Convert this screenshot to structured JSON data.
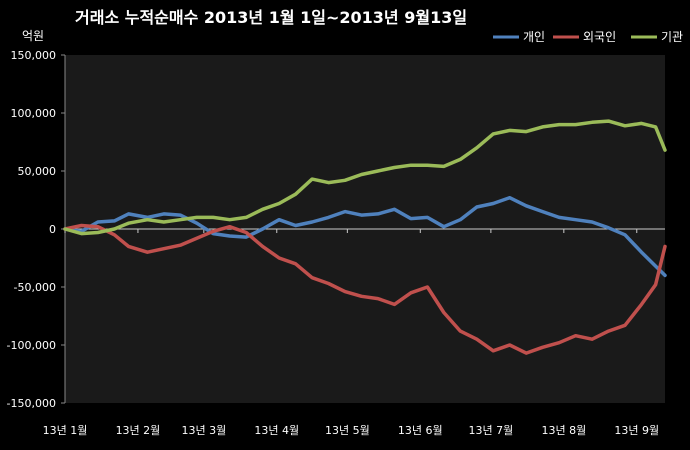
{
  "chart_data": {
    "type": "line",
    "title": "거래소 누적순매수 2013년 1월 1일~2013년 9월13일",
    "unit_label": "억원",
    "ylim": [
      -150000,
      150000
    ],
    "y_ticks": [
      150000,
      100000,
      50000,
      0,
      -50000,
      -100000,
      -150000
    ],
    "y_tick_labels": [
      "150,000",
      "100,000",
      "50,000",
      "0",
      "-50,000",
      "-100,000",
      "-150,000"
    ],
    "x_range": [
      "2013-01-01",
      "2013-09-13"
    ],
    "x_ticks": [
      {
        "date": "2013-01-01",
        "label": "13년 1월"
      },
      {
        "date": "2013-02-01",
        "label": "13년 2월"
      },
      {
        "date": "2013-03-01",
        "label": "13년 3월"
      },
      {
        "date": "2013-04-01",
        "label": "13년 4월"
      },
      {
        "date": "2013-05-01",
        "label": "13년 5월"
      },
      {
        "date": "2013-06-01",
        "label": "13년 6월"
      },
      {
        "date": "2013-07-01",
        "label": "13년 7월"
      },
      {
        "date": "2013-08-01",
        "label": "13년 8월"
      },
      {
        "date": "2013-09-01",
        "label": "13년 9월"
      }
    ],
    "grid": false,
    "legend_position": "top-right",
    "series": [
      {
        "name": "개인",
        "color": "#4f81bd",
        "points": [
          [
            "2013-01-01",
            0
          ],
          [
            "2013-01-08",
            -2000
          ],
          [
            "2013-01-15",
            6000
          ],
          [
            "2013-01-22",
            7000
          ],
          [
            "2013-01-28",
            13000
          ],
          [
            "2013-02-05",
            10000
          ],
          [
            "2013-02-12",
            13000
          ],
          [
            "2013-02-19",
            12000
          ],
          [
            "2013-02-26",
            5000
          ],
          [
            "2013-03-05",
            -4000
          ],
          [
            "2013-03-12",
            -6000
          ],
          [
            "2013-03-19",
            -7000
          ],
          [
            "2013-03-26",
            0
          ],
          [
            "2013-04-02",
            8000
          ],
          [
            "2013-04-09",
            3000
          ],
          [
            "2013-04-16",
            6000
          ],
          [
            "2013-04-23",
            10000
          ],
          [
            "2013-04-30",
            15000
          ],
          [
            "2013-05-07",
            12000
          ],
          [
            "2013-05-14",
            13000
          ],
          [
            "2013-05-21",
            17000
          ],
          [
            "2013-05-28",
            9000
          ],
          [
            "2013-06-04",
            10000
          ],
          [
            "2013-06-11",
            2000
          ],
          [
            "2013-06-18",
            8000
          ],
          [
            "2013-06-25",
            19000
          ],
          [
            "2013-07-02",
            22000
          ],
          [
            "2013-07-09",
            27000
          ],
          [
            "2013-07-16",
            20000
          ],
          [
            "2013-07-23",
            15000
          ],
          [
            "2013-07-30",
            10000
          ],
          [
            "2013-08-06",
            8000
          ],
          [
            "2013-08-13",
            6000
          ],
          [
            "2013-08-20",
            1000
          ],
          [
            "2013-08-27",
            -5000
          ],
          [
            "2013-09-03",
            -20000
          ],
          [
            "2013-09-09",
            -32000
          ],
          [
            "2013-09-13",
            -40000
          ]
        ]
      },
      {
        "name": "외국인",
        "color": "#c0504d",
        "points": [
          [
            "2013-01-01",
            0
          ],
          [
            "2013-01-08",
            3000
          ],
          [
            "2013-01-15",
            2000
          ],
          [
            "2013-01-22",
            -5000
          ],
          [
            "2013-01-28",
            -15000
          ],
          [
            "2013-02-05",
            -20000
          ],
          [
            "2013-02-12",
            -17000
          ],
          [
            "2013-02-19",
            -14000
          ],
          [
            "2013-02-26",
            -8000
          ],
          [
            "2013-03-05",
            -2000
          ],
          [
            "2013-03-12",
            2000
          ],
          [
            "2013-03-19",
            -3000
          ],
          [
            "2013-03-26",
            -15000
          ],
          [
            "2013-04-02",
            -25000
          ],
          [
            "2013-04-09",
            -30000
          ],
          [
            "2013-04-16",
            -42000
          ],
          [
            "2013-04-23",
            -47000
          ],
          [
            "2013-04-30",
            -54000
          ],
          [
            "2013-05-07",
            -58000
          ],
          [
            "2013-05-14",
            -60000
          ],
          [
            "2013-05-21",
            -65000
          ],
          [
            "2013-05-28",
            -55000
          ],
          [
            "2013-06-04",
            -50000
          ],
          [
            "2013-06-11",
            -72000
          ],
          [
            "2013-06-18",
            -88000
          ],
          [
            "2013-06-25",
            -95000
          ],
          [
            "2013-07-02",
            -105000
          ],
          [
            "2013-07-09",
            -100000
          ],
          [
            "2013-07-16",
            -107000
          ],
          [
            "2013-07-23",
            -102000
          ],
          [
            "2013-07-30",
            -98000
          ],
          [
            "2013-08-06",
            -92000
          ],
          [
            "2013-08-13",
            -95000
          ],
          [
            "2013-08-20",
            -88000
          ],
          [
            "2013-08-27",
            -83000
          ],
          [
            "2013-09-03",
            -65000
          ],
          [
            "2013-09-09",
            -48000
          ],
          [
            "2013-09-13",
            -15000
          ]
        ]
      },
      {
        "name": "기관",
        "color": "#9bbb59",
        "points": [
          [
            "2013-01-01",
            0
          ],
          [
            "2013-01-08",
            -4000
          ],
          [
            "2013-01-15",
            -3000
          ],
          [
            "2013-01-22",
            0
          ],
          [
            "2013-01-28",
            5000
          ],
          [
            "2013-02-05",
            8000
          ],
          [
            "2013-02-12",
            6000
          ],
          [
            "2013-02-19",
            8000
          ],
          [
            "2013-02-26",
            10000
          ],
          [
            "2013-03-05",
            10000
          ],
          [
            "2013-03-12",
            8000
          ],
          [
            "2013-03-19",
            10000
          ],
          [
            "2013-03-26",
            17000
          ],
          [
            "2013-04-02",
            22000
          ],
          [
            "2013-04-09",
            30000
          ],
          [
            "2013-04-16",
            43000
          ],
          [
            "2013-04-23",
            40000
          ],
          [
            "2013-04-30",
            42000
          ],
          [
            "2013-05-07",
            47000
          ],
          [
            "2013-05-14",
            50000
          ],
          [
            "2013-05-21",
            53000
          ],
          [
            "2013-05-28",
            55000
          ],
          [
            "2013-06-04",
            55000
          ],
          [
            "2013-06-11",
            54000
          ],
          [
            "2013-06-18",
            60000
          ],
          [
            "2013-06-25",
            70000
          ],
          [
            "2013-07-02",
            82000
          ],
          [
            "2013-07-09",
            85000
          ],
          [
            "2013-07-16",
            84000
          ],
          [
            "2013-07-23",
            88000
          ],
          [
            "2013-07-30",
            90000
          ],
          [
            "2013-08-06",
            90000
          ],
          [
            "2013-08-13",
            92000
          ],
          [
            "2013-08-20",
            93000
          ],
          [
            "2013-08-27",
            89000
          ],
          [
            "2013-09-03",
            91000
          ],
          [
            "2013-09-09",
            88000
          ],
          [
            "2013-09-13",
            68000
          ]
        ]
      }
    ]
  }
}
